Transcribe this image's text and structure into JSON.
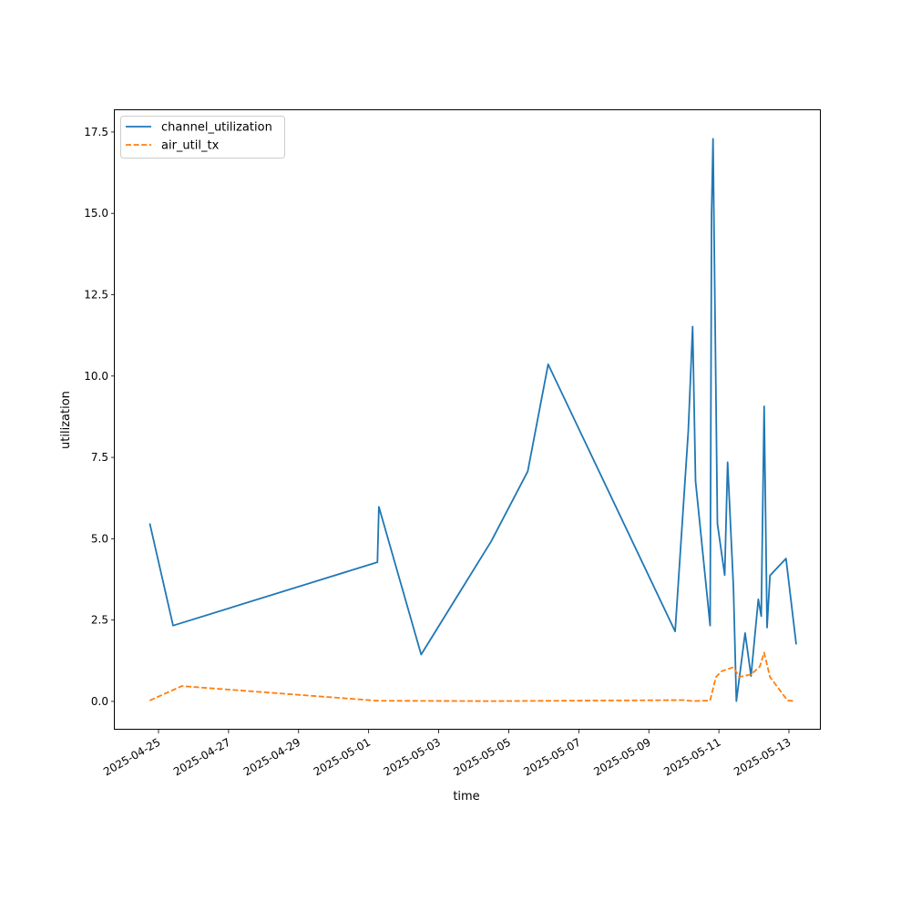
{
  "chart_data": {
    "type": "line",
    "xlabel": "time",
    "ylabel": "utilization",
    "x_type": "datetime",
    "xlim": [
      "2024-04-24T03:00",
      "2025-05-13T21:00"
    ],
    "ylim": [
      -0.87,
      18.17
    ],
    "x_ticks": [
      "2025-04-25",
      "2025-04-27",
      "2025-04-29",
      "2025-05-01",
      "2025-05-03",
      "2025-05-05",
      "2025-05-07",
      "2025-05-09",
      "2025-05-11",
      "2025-05-13"
    ],
    "y_ticks": [
      "0.0",
      "2.5",
      "5.0",
      "7.5",
      "10.0",
      "12.5",
      "15.0",
      "17.5"
    ],
    "legend_position": "upper-left",
    "grid": false,
    "series": [
      {
        "name": "channel_utilization",
        "color": "#1f77b4",
        "dash": "solid",
        "points": [
          [
            "2025-04-24T18:00",
            5.47
          ],
          [
            "2025-04-25T10:00",
            2.33
          ],
          [
            "2025-05-01T06:00",
            4.28
          ],
          [
            "2025-05-01T07:00",
            5.98
          ],
          [
            "2025-05-02T12:00",
            1.44
          ],
          [
            "2025-05-04T12:00",
            4.92
          ],
          [
            "2025-05-05T13:00",
            7.07
          ],
          [
            "2025-05-06T03:00",
            10.36
          ],
          [
            "2025-05-09T18:00",
            2.15
          ],
          [
            "2025-05-10T03:00",
            8.3
          ],
          [
            "2025-05-10T06:00",
            11.52
          ],
          [
            "2025-05-10T08:00",
            6.77
          ],
          [
            "2025-05-10T18:00",
            2.33
          ],
          [
            "2025-05-10T19:00",
            15.0
          ],
          [
            "2025-05-10T20:00",
            17.29
          ],
          [
            "2025-05-10T23:00",
            5.47
          ],
          [
            "2025-05-11T04:00",
            3.88
          ],
          [
            "2025-05-11T06:00",
            7.35
          ],
          [
            "2025-05-11T10:00",
            3.5
          ],
          [
            "2025-05-11T12:00",
            0.01
          ],
          [
            "2025-05-11T18:00",
            2.1
          ],
          [
            "2025-05-11T22:00",
            0.78
          ],
          [
            "2025-05-12T03:00",
            3.14
          ],
          [
            "2025-05-12T05:00",
            2.62
          ],
          [
            "2025-05-12T07:00",
            9.07
          ],
          [
            "2025-05-12T09:00",
            2.27
          ],
          [
            "2025-05-12T11:00",
            3.87
          ],
          [
            "2025-05-12T22:00",
            4.39
          ],
          [
            "2025-05-13T05:00",
            1.75
          ]
        ]
      },
      {
        "name": "air_util_tx",
        "color": "#ff7f0e",
        "dash": "dashed",
        "points": [
          [
            "2025-04-24T18:00",
            0.03
          ],
          [
            "2025-04-25T16:00",
            0.47
          ],
          [
            "2025-05-01T06:00",
            0.02
          ],
          [
            "2025-05-04T12:00",
            0.01
          ],
          [
            "2025-05-10T00:00",
            0.04
          ],
          [
            "2025-05-10T06:00",
            0.01
          ],
          [
            "2025-05-10T18:00",
            0.03
          ],
          [
            "2025-05-10T22:00",
            0.75
          ],
          [
            "2025-05-11T02:00",
            0.93
          ],
          [
            "2025-05-11T10:00",
            1.05
          ],
          [
            "2025-05-11T14:00",
            0.75
          ],
          [
            "2025-05-11T22:00",
            0.83
          ],
          [
            "2025-05-12T04:00",
            1.07
          ],
          [
            "2025-05-12T07:00",
            1.5
          ],
          [
            "2025-05-12T11:00",
            0.75
          ],
          [
            "2025-05-12T23:00",
            0.03
          ],
          [
            "2025-05-13T04:00",
            0.01
          ]
        ]
      }
    ]
  }
}
